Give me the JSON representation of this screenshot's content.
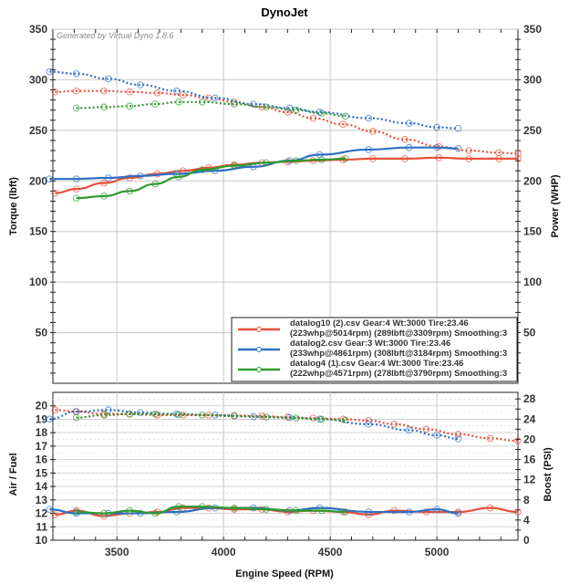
{
  "chart_data": [
    {
      "type": "line",
      "title": "DynoJet",
      "credit": "Generated by Virtual Dyno 1.8.6",
      "xlabel": "Engine Speed (RPM)",
      "ylabel": "Torque (lbft)",
      "y2label": "Power (WHP)",
      "xlim": [
        3200,
        5380
      ],
      "ylim": [
        0,
        350
      ],
      "y2lim": [
        0,
        350
      ],
      "x_ticks": [
        "3500",
        "4000",
        "4500",
        "5000"
      ],
      "y_ticks": [
        "50",
        "100",
        "150",
        "200",
        "250",
        "300",
        "350"
      ],
      "y2_ticks": [
        "50",
        "100",
        "150",
        "200",
        "250",
        "300",
        "350"
      ],
      "grid": true,
      "legend_position": "bottom-right",
      "series": [
        {
          "name": "datalog10 (2).csv Gear:4 Wt:3000 Tire:23.46",
          "detail": "(223whp@5014rpm) (289lbft@3309rpm) Smoothing:3",
          "color": "#e8503a",
          "power": {
            "x": [
              3210,
              3310,
              3440,
              3560,
              3690,
              3810,
              3930,
              4050,
              4180,
              4300,
              4420,
              4560,
              4700,
              4850,
              5010,
              5150,
              5290,
              5380
            ],
            "y": [
              188,
              192,
              198,
              203,
              207,
              210,
              213,
              216,
              218,
              219,
              220,
              221,
              222,
              222,
              223,
              222,
              222,
              222
            ]
          },
          "torque": {
            "x": [
              3210,
              3310,
              3440,
              3560,
              3690,
              3810,
              3930,
              4050,
              4180,
              4300,
              4420,
              4560,
              4700,
              4850,
              5010,
              5150,
              5290,
              5380
            ],
            "y": [
              288,
              289,
              289,
              288,
              287,
              285,
              282,
              278,
              273,
              268,
              262,
              256,
              249,
              241,
              234,
              230,
              228,
              227
            ]
          }
        },
        {
          "name": "datalog2.csv Gear:3 Wt:3000 Tire:23.46",
          "detail": "(233whp@4861rpm) (308lbft@3184rpm) Smoothing:3",
          "color": "#2f6fc4",
          "power": {
            "x": [
              3184,
              3310,
              3460,
              3610,
              3780,
              3960,
              4140,
              4310,
              4450,
              4680,
              4870,
              5000,
              5100
            ],
            "y": [
              202,
              202,
              203,
              205,
              207,
              210,
              214,
              220,
              226,
              231,
              233,
              233,
              232
            ]
          },
          "torque": {
            "x": [
              3184,
              3310,
              3460,
              3610,
              3780,
              3960,
              4140,
              4310,
              4450,
              4680,
              4870,
              5000,
              5100
            ],
            "y": [
              308,
              306,
              301,
              295,
              289,
              282,
              276,
              272,
              268,
              262,
              257,
              253,
              252
            ]
          }
        },
        {
          "name": "datalog4 (1).csv Gear:4 Wt:3000 Tire:23.46",
          "detail": "(222whp@4571rpm) (278lbft@3790rpm) Smoothing:3",
          "color": "#2e9a2e",
          "power": {
            "x": [
              3310,
              3440,
              3560,
              3680,
              3790,
              3900,
              4050,
              4200,
              4340,
              4460,
              4571
            ],
            "y": [
              183,
              185,
              190,
              197,
              204,
              211,
              215,
              218,
              220,
              221,
              222
            ]
          },
          "torque": {
            "x": [
              3310,
              3440,
              3560,
              3680,
              3790,
              3900,
              4050,
              4200,
              4340,
              4460,
              4571
            ],
            "y": [
              272,
              273,
              274,
              276,
              278,
              278,
              276,
              273,
              270,
              267,
              264
            ]
          }
        }
      ]
    },
    {
      "type": "line",
      "xlabel": "Engine Speed (RPM)",
      "ylabel": "Air / Fuel",
      "y2label": "Boost (PSI)",
      "xlim": [
        3200,
        5380
      ],
      "ylim": [
        10,
        21
      ],
      "y2lim": [
        0,
        29.3
      ],
      "x_ticks": [
        "3500",
        "4000",
        "4500",
        "5000"
      ],
      "y_ticks": [
        "10",
        "11",
        "12",
        "13",
        "14",
        "15",
        "16",
        "17",
        "18",
        "19",
        "20"
      ],
      "y2_ticks": [
        "0",
        "4",
        "8",
        "12",
        "16",
        "20",
        "24",
        "28"
      ],
      "grid": true,
      "series": [
        {
          "name": "datalog10 (2).csv",
          "color": "#e8503a",
          "afr": {
            "x": [
              3210,
              3310,
              3440,
              3560,
              3690,
              3810,
              3930,
              4050,
              4180,
              4300,
              4420,
              4560,
              4680,
              4800,
              4950,
              5100,
              5250,
              5380
            ],
            "y": [
              11.9,
              12.2,
              11.8,
              12.0,
              12.1,
              12.4,
              12.4,
              12.3,
              12.3,
              12.1,
              12.2,
              12.1,
              11.9,
              12.2,
              12.1,
              12.1,
              12.4,
              12.1
            ]
          },
          "boost": {
            "x": [
              3210,
              3310,
              3440,
              3560,
              3690,
              3810,
              3930,
              4050,
              4180,
              4300,
              4420,
              4560,
              4680,
              4800,
              4950,
              5100,
              5250,
              5380
            ],
            "y": [
              25.8,
              25.5,
              25.0,
              25.0,
              24.8,
              24.8,
              24.8,
              24.7,
              24.6,
              24.4,
              24.2,
              24.0,
              23.7,
              23.0,
              22.0,
              21.0,
              20.2,
              19.7
            ]
          }
        },
        {
          "name": "datalog2.csv",
          "color": "#2f6fc4",
          "afr": {
            "x": [
              3184,
              3310,
              3460,
              3610,
              3780,
              3960,
              4140,
              4310,
              4450,
              4680,
              4870,
              5000,
              5100
            ],
            "y": [
              12.3,
              12.0,
              12.0,
              12.0,
              12.1,
              12.4,
              12.4,
              12.2,
              12.4,
              12.1,
              12.1,
              12.3,
              12.0
            ]
          },
          "boost": {
            "x": [
              3184,
              3310,
              3460,
              3610,
              3780,
              3960,
              4140,
              4310,
              4450,
              4680,
              4870,
              5000,
              5100
            ],
            "y": [
              24.0,
              25.5,
              25.8,
              25.3,
              25.0,
              24.8,
              24.5,
              24.3,
              24.0,
              23.0,
              21.8,
              20.8,
              20.1
            ]
          }
        },
        {
          "name": "datalog4 (1).csv",
          "color": "#2e9a2e",
          "afr": {
            "x": [
              3310,
              3440,
              3560,
              3680,
              3790,
              3900,
              4050,
              4200,
              4340,
              4460,
              4571
            ],
            "y": [
              12.1,
              12.0,
              12.2,
              12.0,
              12.5,
              12.5,
              12.4,
              12.3,
              12.2,
              12.2,
              12.1
            ]
          },
          "boost": {
            "x": [
              3310,
              3440,
              3560,
              3680,
              3790,
              3900,
              4050,
              4200,
              4340,
              4460,
              4571
            ],
            "y": [
              24.3,
              24.8,
              25.0,
              25.0,
              24.9,
              24.8,
              24.6,
              24.4,
              24.2,
              24.0,
              23.8
            ]
          }
        }
      ]
    }
  ]
}
